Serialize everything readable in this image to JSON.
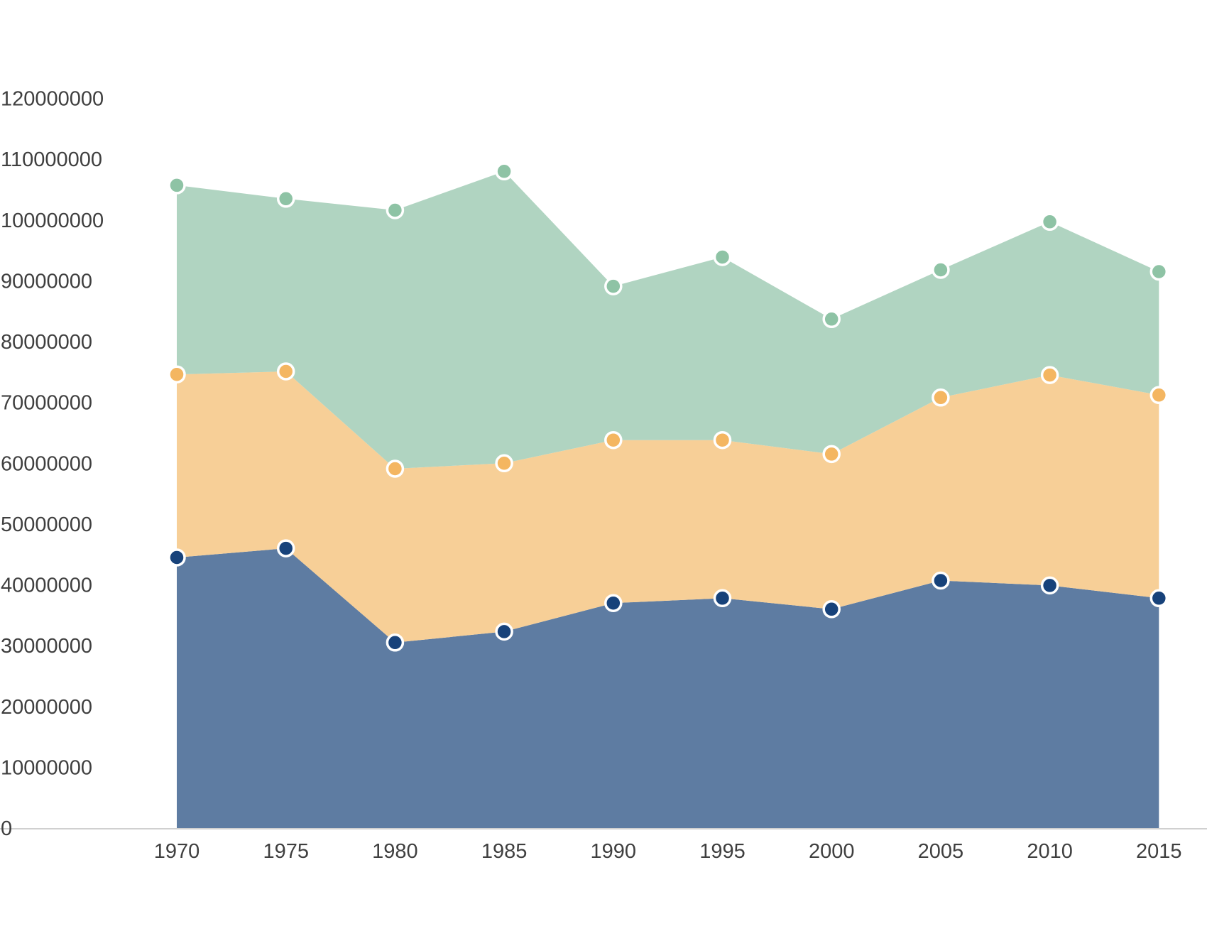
{
  "chart_data": {
    "type": "area",
    "stacked": true,
    "title": "",
    "xlabel": "",
    "ylabel": "",
    "x": [
      "1970",
      "1975",
      "1980",
      "1985",
      "1990",
      "1995",
      "2000",
      "2005",
      "2010",
      "2015"
    ],
    "ylim": [
      0,
      120000000
    ],
    "yticks": [
      "0",
      "10000000",
      "20000000",
      "30000000",
      "40000000",
      "50000000",
      "60000000",
      "70000000",
      "80000000",
      "90000000",
      "100000000",
      "110000000",
      "120000000"
    ],
    "grid": false,
    "legend": "none",
    "series": [
      {
        "values": [
          44500000,
          46000000,
          30500000,
          32300000,
          37000000,
          37800000,
          36000000,
          40700000,
          39900000,
          37800000
        ],
        "fill": "#5e7ca2",
        "marker": "#17427a"
      },
      {
        "values": [
          30100000,
          29100000,
          28600000,
          27700000,
          26800000,
          26000000,
          25500000,
          30100000,
          34600000,
          33400000
        ],
        "fill": "#f7cf97",
        "marker": "#f4b661"
      },
      {
        "values": [
          31100000,
          28400000,
          42500000,
          48000000,
          25300000,
          30100000,
          22200000,
          21000000,
          25200000,
          20300000
        ],
        "fill": "#b0d4c1",
        "marker": "#8ec3a5"
      }
    ]
  }
}
